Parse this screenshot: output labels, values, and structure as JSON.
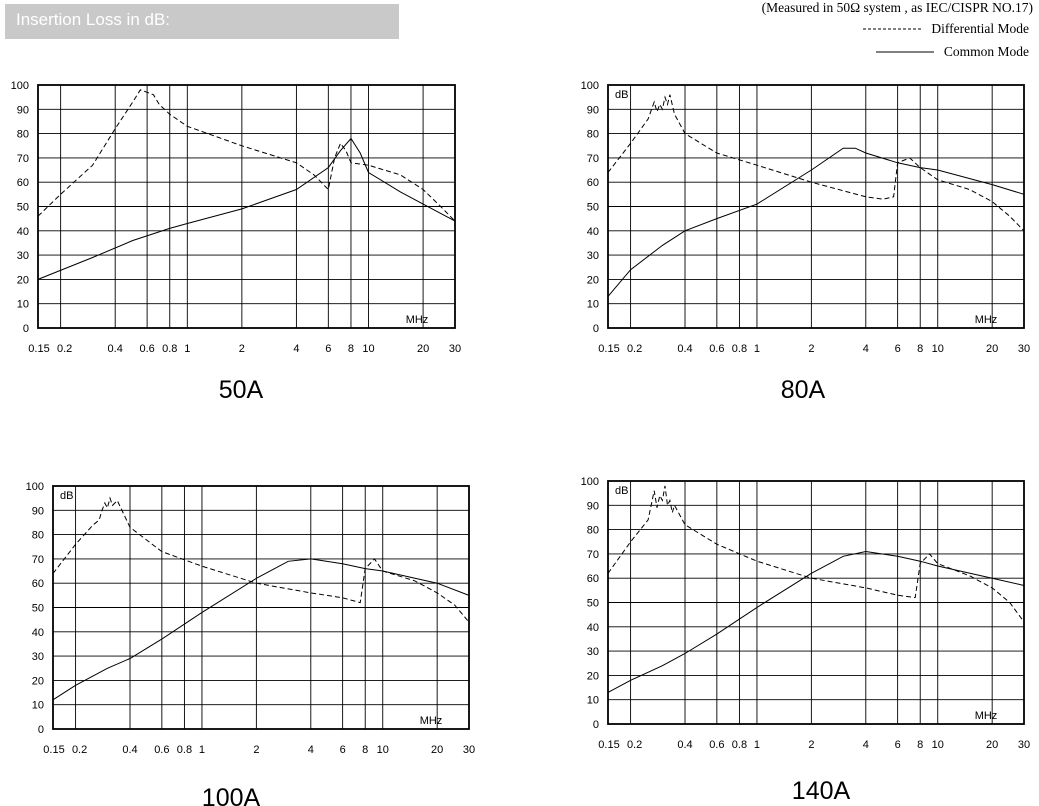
{
  "header": {
    "title": "Insertion Loss in dB:"
  },
  "legend": {
    "note": "(Measured in 50Ω system , as IEC/CISPR NO.17)",
    "items": [
      {
        "label": "Differential  Mode",
        "style": "dashed"
      },
      {
        "label": "Common  Mode",
        "style": "solid"
      }
    ]
  },
  "chart_data": [
    {
      "type": "line",
      "title": "50A",
      "ylabel": "",
      "xlabel": "MHz",
      "xscale": "log",
      "xlim": [
        0.15,
        30
      ],
      "ylim": [
        0,
        100
      ],
      "xticks": [
        "0.15",
        "0.2",
        "0.4",
        "0.6",
        "0.8",
        "1",
        "2",
        "4",
        "6",
        "8",
        "10",
        "20",
        "30"
      ],
      "yticks": [
        "0",
        "10",
        "20",
        "30",
        "40",
        "50",
        "60",
        "70",
        "80",
        "90",
        "100"
      ],
      "series": [
        {
          "style": "dashed",
          "x": [
            0.15,
            0.2,
            0.3,
            0.4,
            0.5,
            0.55,
            0.6,
            0.65,
            0.7,
            0.8,
            1,
            2,
            4,
            5,
            6,
            6.5,
            7,
            7.5,
            8,
            10,
            15,
            20,
            25,
            30
          ],
          "y": [
            46,
            55,
            67,
            82,
            93,
            98,
            97,
            96,
            92,
            88,
            83,
            75,
            68,
            63,
            57,
            70,
            76,
            73,
            68,
            67,
            63,
            57,
            50,
            44
          ]
        },
        {
          "style": "solid",
          "x": [
            0.15,
            0.3,
            0.5,
            0.8,
            1,
            2,
            4,
            6,
            7,
            8,
            9,
            10,
            15,
            20,
            30
          ],
          "y": [
            20,
            29,
            36,
            41,
            43,
            49,
            57,
            66,
            73,
            78,
            72,
            64,
            56,
            51,
            44
          ]
        }
      ]
    },
    {
      "type": "line",
      "title": "80A",
      "ylabel": "dB",
      "xlabel": "MHz",
      "xscale": "log",
      "xlim": [
        0.15,
        30
      ],
      "ylim": [
        0,
        100
      ],
      "xticks": [
        "0.15",
        "0.2",
        "0.4",
        "0.6",
        "0.8",
        "1",
        "2",
        "4",
        "6",
        "8",
        "10",
        "20",
        "30"
      ],
      "yticks": [
        "0",
        "10",
        "20",
        "30",
        "40",
        "50",
        "60",
        "70",
        "80",
        "90",
        "100"
      ],
      "series": [
        {
          "style": "dashed",
          "x": [
            0.15,
            0.2,
            0.25,
            0.27,
            0.28,
            0.29,
            0.3,
            0.31,
            0.32,
            0.33,
            0.35,
            0.4,
            0.6,
            1,
            2,
            4,
            5,
            5.7,
            6,
            7,
            8,
            10,
            15,
            20,
            25,
            30
          ],
          "y": [
            64,
            76,
            86,
            93,
            89,
            92,
            90,
            95,
            92,
            96,
            88,
            80,
            72,
            67,
            60,
            54,
            53,
            54,
            68,
            70,
            66,
            61,
            57,
            52,
            46,
            40
          ]
        },
        {
          "style": "solid",
          "x": [
            0.15,
            0.2,
            0.3,
            0.4,
            0.6,
            1,
            2,
            3,
            3.5,
            4,
            6,
            8,
            10,
            20,
            30
          ],
          "y": [
            13,
            24,
            34,
            40,
            45,
            51,
            65,
            74,
            74,
            72,
            68,
            66,
            65,
            59,
            55
          ]
        }
      ]
    },
    {
      "type": "line",
      "title": "100A",
      "ylabel": "dB",
      "xlabel": "MHz",
      "xscale": "log",
      "xlim": [
        0.15,
        30
      ],
      "ylim": [
        0,
        100
      ],
      "xticks": [
        "0.15",
        "0.2",
        "0.4",
        "0.6",
        "0.8",
        "1",
        "2",
        "4",
        "6",
        "8",
        "10",
        "20",
        "30"
      ],
      "yticks": [
        "0",
        "10",
        "20",
        "30",
        "40",
        "50",
        "60",
        "70",
        "80",
        "90",
        "100"
      ],
      "series": [
        {
          "style": "dashed",
          "x": [
            0.15,
            0.2,
            0.25,
            0.27,
            0.28,
            0.29,
            0.3,
            0.31,
            0.32,
            0.34,
            0.4,
            0.6,
            1,
            2,
            4,
            6,
            7.5,
            8,
            9,
            10,
            15,
            20,
            25,
            30
          ],
          "y": [
            64,
            76,
            84,
            86,
            90,
            93,
            91,
            95,
            92,
            94,
            83,
            73,
            67,
            60,
            56,
            54,
            52,
            66,
            70,
            65,
            61,
            56,
            51,
            44
          ]
        },
        {
          "style": "solid",
          "x": [
            0.15,
            0.2,
            0.3,
            0.4,
            0.6,
            1,
            2,
            3,
            4,
            6,
            8,
            10,
            20,
            30
          ],
          "y": [
            12,
            18,
            25,
            29,
            37,
            48,
            62,
            69,
            70,
            68,
            66,
            65,
            60,
            55
          ]
        }
      ]
    },
    {
      "type": "line",
      "title": "140A",
      "ylabel": "dB",
      "xlabel": "MHz",
      "xscale": "log",
      "xlim": [
        0.15,
        30
      ],
      "ylim": [
        0,
        100
      ],
      "xticks": [
        "0.15",
        "0.2",
        "0.4",
        "0.6",
        "0.8",
        "1",
        "2",
        "4",
        "6",
        "8",
        "10",
        "20",
        "30"
      ],
      "yticks": [
        "0",
        "10",
        "20",
        "30",
        "40",
        "50",
        "60",
        "70",
        "80",
        "90",
        "100"
      ],
      "series": [
        {
          "style": "dashed",
          "x": [
            0.15,
            0.2,
            0.25,
            0.27,
            0.28,
            0.29,
            0.3,
            0.31,
            0.32,
            0.33,
            0.34,
            0.35,
            0.4,
            0.6,
            1,
            2,
            4,
            6,
            7.5,
            8,
            9,
            10,
            15,
            20,
            25,
            30
          ],
          "y": [
            62,
            75,
            84,
            96,
            89,
            94,
            92,
            98,
            90,
            92,
            87,
            90,
            82,
            74,
            67,
            60,
            56,
            53,
            52,
            66,
            70,
            66,
            61,
            56,
            50,
            42
          ]
        },
        {
          "style": "solid",
          "x": [
            0.15,
            0.2,
            0.3,
            0.4,
            0.6,
            1,
            2,
            3,
            4,
            6,
            8,
            10,
            20,
            30
          ],
          "y": [
            13,
            18,
            24,
            29,
            37,
            48,
            62,
            69,
            71,
            69,
            67,
            65,
            60,
            57
          ]
        }
      ]
    }
  ]
}
